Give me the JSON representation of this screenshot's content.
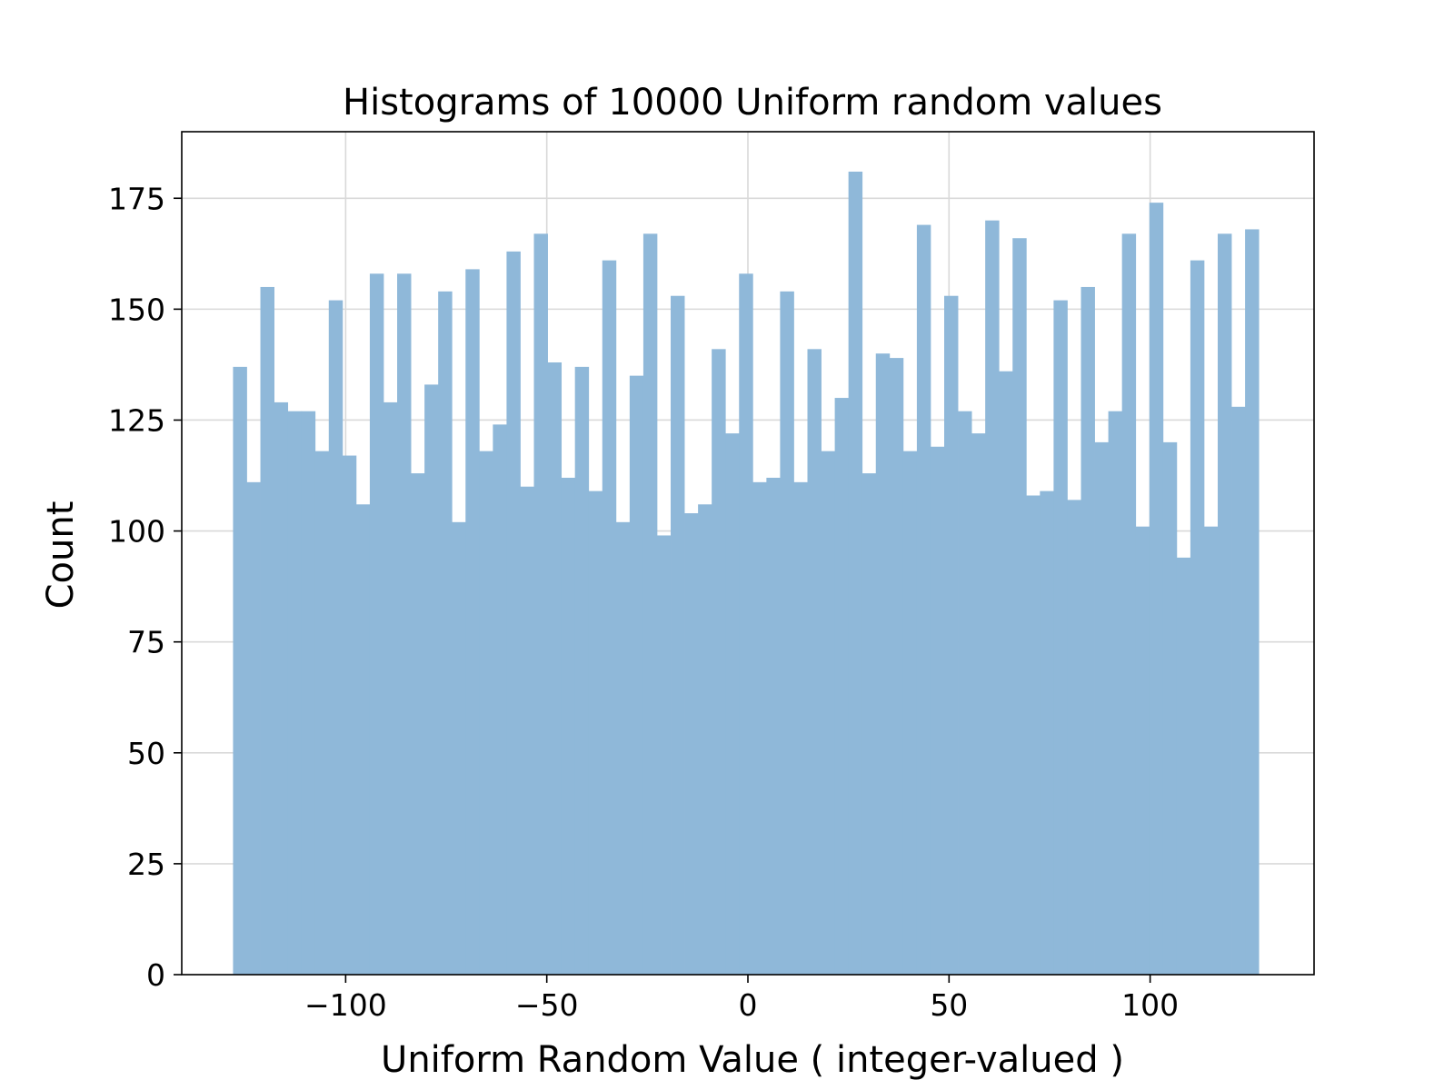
{
  "chart_data": {
    "type": "bar",
    "title": "Histograms of 10000 Uniform random values",
    "xlabel": "Uniform Random Value ( integer-valued )",
    "ylabel": "Count",
    "xlim": [
      -140.75,
      140.75
    ],
    "ylim": [
      0,
      190
    ],
    "xticks": [
      -100,
      -50,
      0,
      50,
      100
    ],
    "xtick_labels": [
      "−100",
      "−50",
      "0",
      "50",
      "100"
    ],
    "yticks": [
      0,
      25,
      50,
      75,
      100,
      125,
      150,
      175
    ],
    "ytick_labels": [
      "0",
      "25",
      "50",
      "75",
      "100",
      "125",
      "150",
      "175"
    ],
    "grid": true,
    "legend": "none",
    "bar_color": "#8fb8d9",
    "bin_range": [
      -128,
      127
    ],
    "bin_width": 3.4,
    "values": [
      137,
      111,
      155,
      129,
      127,
      127,
      118,
      152,
      117,
      106,
      158,
      129,
      158,
      113,
      133,
      154,
      102,
      159,
      118,
      124,
      163,
      110,
      167,
      138,
      112,
      137,
      109,
      161,
      102,
      135,
      167,
      99,
      153,
      104,
      106,
      141,
      122,
      158,
      111,
      112,
      154,
      111,
      141,
      118,
      130,
      181,
      113,
      140,
      139,
      118,
      169,
      119,
      153,
      127,
      122,
      170,
      136,
      166,
      108,
      109,
      152,
      107,
      155,
      120,
      127,
      167,
      101,
      174,
      120,
      94,
      161,
      101,
      167,
      128,
      168
    ]
  }
}
